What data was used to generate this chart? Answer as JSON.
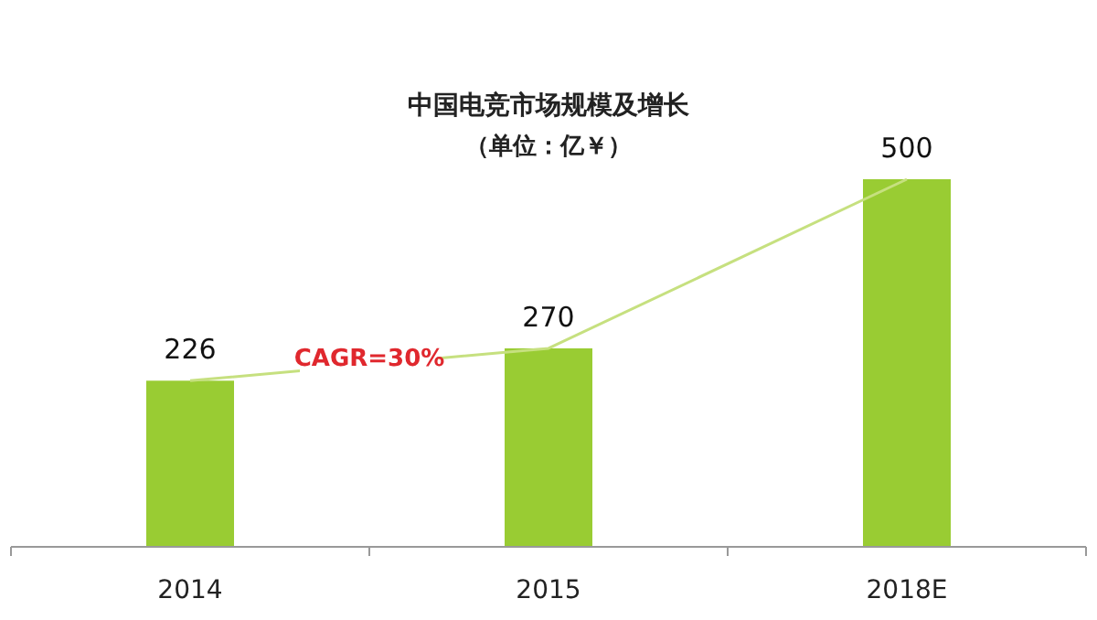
{
  "chart_data": {
    "type": "bar",
    "title": "中国电竞市场规模及增长",
    "subtitle": "（单位：亿￥）",
    "categories": [
      "2014",
      "2015",
      "2018E"
    ],
    "series": [
      {
        "color": "#99cc33",
        "values": [
          226,
          270,
          500
        ]
      },
      {
        "type": "line",
        "color": "#c6e07f",
        "values": [
          226,
          270,
          500
        ],
        "value_labels": [
          null,
          null,
          null
        ]
      }
    ],
    "data_labels": true,
    "annotations": [
      "CAGR=30%"
    ]
  }
}
